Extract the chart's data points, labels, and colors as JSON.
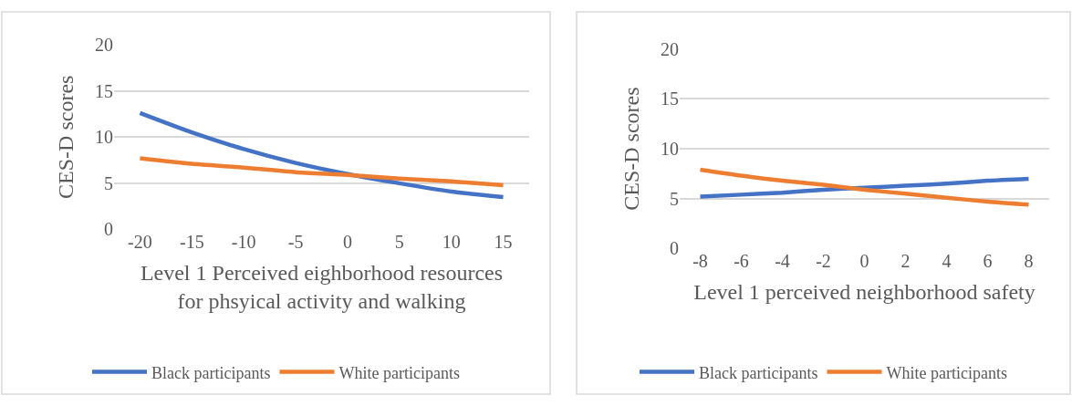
{
  "chart_data": [
    {
      "type": "line",
      "categories": [
        "-20",
        "-15",
        "-10",
        "-5",
        "0",
        "5",
        "10",
        "15"
      ],
      "xlabel": "Level 1 Perceived eighborhood resources\nfor phsyical activity and walking",
      "ylabel": "CES-D scores",
      "ylim": [
        0,
        20
      ],
      "yticks": [
        0,
        5,
        10,
        15,
        20
      ],
      "grid": "y",
      "legend": "bottom",
      "marker": "none",
      "series": [
        {
          "name": "Black participants",
          "color": "#4472c4",
          "values": [
            12.6,
            10.5,
            8.7,
            7.2,
            6.0,
            5.0,
            4.1,
            3.5
          ]
        },
        {
          "name": "White participants",
          "color": "#ed7d31",
          "values": [
            7.7,
            7.1,
            6.7,
            6.2,
            5.9,
            5.5,
            5.2,
            4.8
          ]
        }
      ]
    },
    {
      "type": "line",
      "categories": [
        "-8",
        "-6",
        "-4",
        "-2",
        "0",
        "2",
        "4",
        "6",
        "8"
      ],
      "xlabel": "Level 1 perceived neighborhood safety",
      "ylabel": "CES-D scores",
      "ylim": [
        0,
        20
      ],
      "yticks": [
        0,
        5,
        10,
        15,
        20
      ],
      "grid": "y",
      "legend": "bottom",
      "marker": "none",
      "series": [
        {
          "name": "Black participants",
          "color": "#4472c4",
          "values": [
            5.2,
            5.4,
            5.6,
            5.9,
            6.1,
            6.3,
            6.5,
            6.8,
            7.0
          ]
        },
        {
          "name": "White participants",
          "color": "#ed7d31",
          "values": [
            7.9,
            7.3,
            6.8,
            6.4,
            5.9,
            5.5,
            5.1,
            4.7,
            4.4
          ]
        }
      ]
    }
  ]
}
